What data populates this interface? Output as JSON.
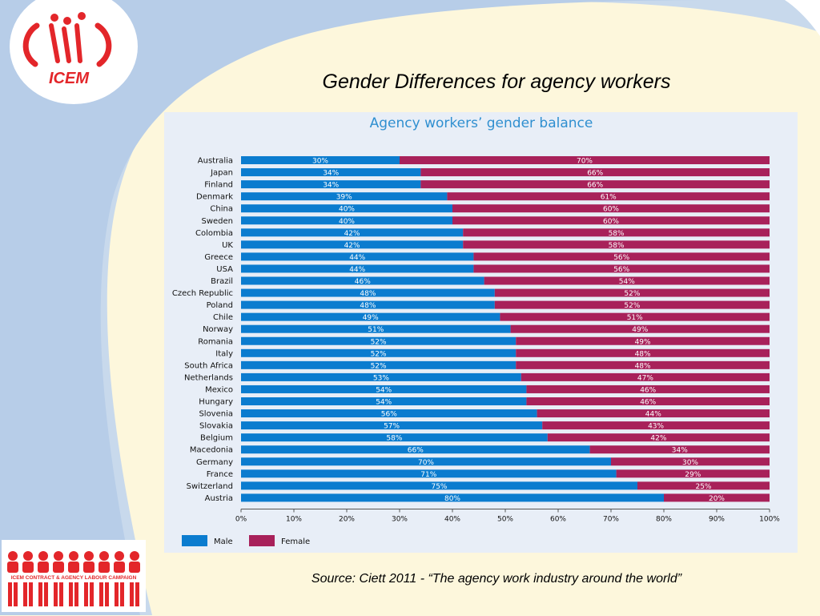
{
  "slide": {
    "title": "Gender Differences for agency workers",
    "source": "Source: Ciett 2011 - “The agency work industry around the world”",
    "logo_text": "ICEM",
    "campaign_text": "ICEM CONTRACT & AGENCY LABOUR CAMPAIGN"
  },
  "chart_data": {
    "type": "bar",
    "orientation": "horizontal",
    "stacked": true,
    "title": "Agency workers’ gender balance",
    "categories": [
      "Australia",
      "Japan",
      "Finland",
      "Denmark",
      "China",
      "Sweden",
      "Colombia",
      "UK",
      "Greece",
      "USA",
      "Brazil",
      "Czech Republic",
      "Poland",
      "Chile",
      "Norway",
      "Romania",
      "Italy",
      "South Africa",
      "Netherlands",
      "Mexico",
      "Hungary",
      "Slovenia",
      "Slovakia",
      "Belgium",
      "Macedonia",
      "Germany",
      "France",
      "Switzerland",
      "Austria"
    ],
    "series": [
      {
        "name": "Male",
        "color": "#0b7ccf",
        "values": [
          30,
          34,
          34,
          39,
          40,
          40,
          42,
          42,
          44,
          44,
          46,
          48,
          48,
          49,
          51,
          52,
          52,
          52,
          53,
          54,
          54,
          56,
          57,
          58,
          66,
          70,
          71,
          75,
          80
        ]
      },
      {
        "name": "Female",
        "color": "#a8215a",
        "values": [
          70,
          66,
          66,
          61,
          60,
          60,
          58,
          58,
          56,
          56,
          54,
          52,
          52,
          51,
          49,
          49,
          48,
          48,
          47,
          46,
          46,
          44,
          43,
          42,
          34,
          30,
          29,
          25,
          20
        ]
      }
    ],
    "x_ticks": [
      "0%",
      "10%",
      "20%",
      "30%",
      "40%",
      "50%",
      "60%",
      "70%",
      "80%",
      "90%",
      "100%"
    ],
    "xlim": [
      0,
      100
    ],
    "legend_position": "bottom-left"
  }
}
